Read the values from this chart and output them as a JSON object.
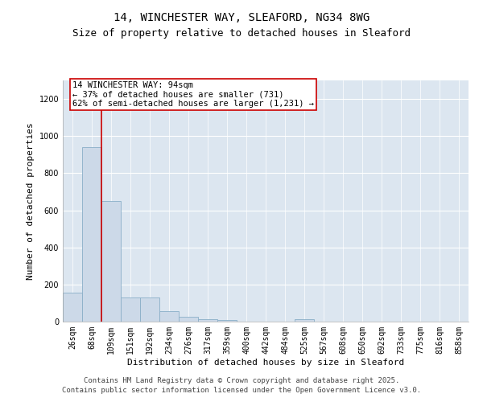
{
  "title_line1": "14, WINCHESTER WAY, SLEAFORD, NG34 8WG",
  "title_line2": "Size of property relative to detached houses in Sleaford",
  "xlabel": "Distribution of detached houses by size in Sleaford",
  "ylabel": "Number of detached properties",
  "bar_color": "#ccd9e8",
  "bar_edge_color": "#8aafc8",
  "categories": [
    "26sqm",
    "68sqm",
    "109sqm",
    "151sqm",
    "192sqm",
    "234sqm",
    "276sqm",
    "317sqm",
    "359sqm",
    "400sqm",
    "442sqm",
    "484sqm",
    "525sqm",
    "567sqm",
    "608sqm",
    "650sqm",
    "692sqm",
    "733sqm",
    "775sqm",
    "816sqm",
    "858sqm"
  ],
  "values": [
    155,
    940,
    650,
    130,
    130,
    58,
    28,
    15,
    10,
    0,
    0,
    0,
    15,
    0,
    0,
    0,
    0,
    0,
    0,
    0,
    0
  ],
  "ylim": [
    0,
    1300
  ],
  "yticks": [
    0,
    200,
    400,
    600,
    800,
    1000,
    1200
  ],
  "property_line_x": 1.5,
  "annotation_title": "14 WINCHESTER WAY: 94sqm",
  "annotation_line1": "← 37% of detached houses are smaller (731)",
  "annotation_line2": "62% of semi-detached houses are larger (1,231) →",
  "annotation_box_facecolor": "#ffffff",
  "annotation_box_edgecolor": "#cc0000",
  "vline_color": "#cc0000",
  "footnote1": "Contains HM Land Registry data © Crown copyright and database right 2025.",
  "footnote2": "Contains public sector information licensed under the Open Government Licence v3.0.",
  "plot_bg_color": "#dce6f0",
  "fig_bg_color": "#ffffff",
  "grid_color": "#ffffff",
  "title_fontsize": 10,
  "subtitle_fontsize": 9,
  "axis_label_fontsize": 8,
  "tick_fontsize": 7,
  "annotation_fontsize": 7.5,
  "footnote_fontsize": 6.5
}
